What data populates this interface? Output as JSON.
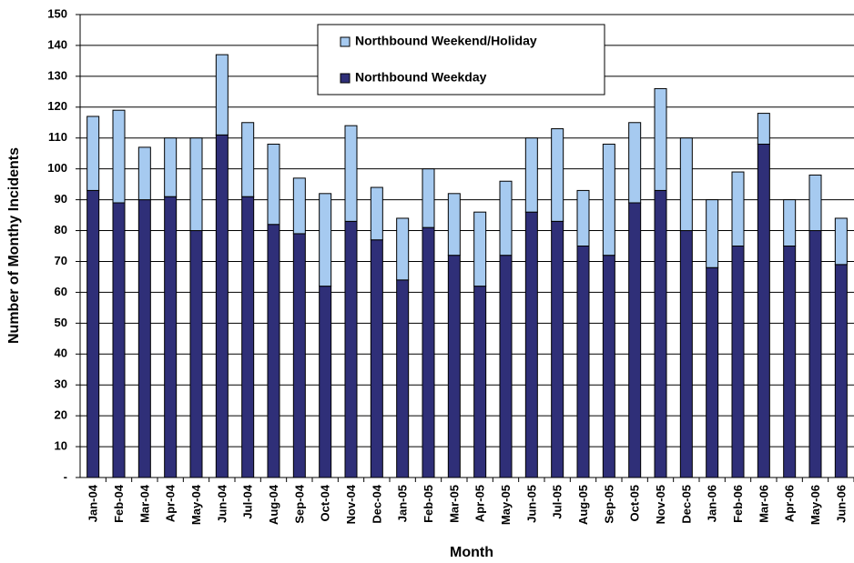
{
  "chart_data": {
    "type": "stacked_bar",
    "x_label": "Month",
    "y_label": "Number of Monthy Incidents",
    "categories": [
      "Jan-04",
      "Feb-04",
      "Mar-04",
      "Apr-04",
      "May-04",
      "Jun-04",
      "Jul-04",
      "Aug-04",
      "Sep-04",
      "Oct-04",
      "Nov-04",
      "Dec-04",
      "Jan-05",
      "Feb-05",
      "Mar-05",
      "Apr-05",
      "May-05",
      "Jun-05",
      "Jul-05",
      "Aug-05",
      "Sep-05",
      "Oct-05",
      "Nov-05",
      "Dec-05",
      "Jan-06",
      "Feb-06",
      "Mar-06",
      "Apr-06",
      "May-06",
      "Jun-06"
    ],
    "series": [
      {
        "name": "Northbound Weekday",
        "color": "#2f2f78",
        "values": [
          93,
          89,
          90,
          91,
          80,
          111,
          91,
          82,
          79,
          62,
          83,
          77,
          64,
          81,
          72,
          62,
          72,
          86,
          83,
          75,
          72,
          89,
          93,
          80,
          68,
          75,
          108,
          75,
          80,
          69
        ]
      },
      {
        "name": "Northbound Weekend/Holiday",
        "color": "#a6caf0",
        "values": [
          24,
          30,
          17,
          19,
          30,
          26,
          24,
          26,
          18,
          30,
          31,
          17,
          20,
          19,
          20,
          24,
          24,
          24,
          30,
          18,
          36,
          26,
          33,
          30,
          22,
          24,
          10,
          15,
          18,
          15
        ]
      }
    ],
    "ylim": [
      0,
      150
    ],
    "yticks": [
      {
        "value": 0,
        "label": "-"
      },
      10,
      20,
      30,
      40,
      50,
      60,
      70,
      80,
      90,
      100,
      110,
      120,
      130,
      140,
      150
    ],
    "grid": true
  }
}
